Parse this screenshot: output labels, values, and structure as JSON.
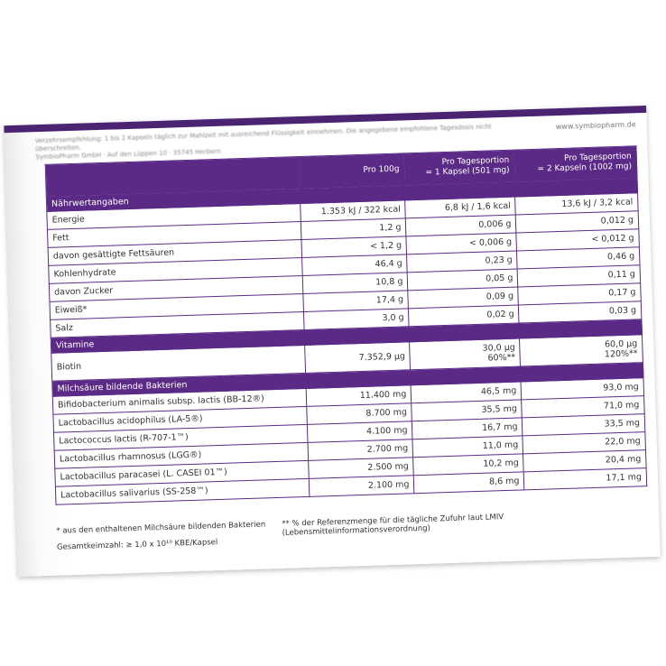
{
  "box": {
    "top_text": [
      "Verzehrsempfehlung: 1 bis 2 Kapseln täglich zur Mahlzeit mit ausreichend Flüssigkeit einnehmen. Die angegebene empfohlene Tagesdosis nicht überschreiten.",
      "SymbioPharm GmbH · Auf den Lüppen 10 · 35745 Herborn"
    ],
    "website": "www.symbiopharm.de",
    "table": {
      "header": [
        "Pro 100g",
        [
          "Pro Tagesportion",
          "= 1 Kapsel (501 mg)"
        ],
        [
          "Pro Tagesportion",
          "= 2 Kapseln (1002 mg)"
        ]
      ],
      "rows": [
        {
          "section": "Nährwertangaben"
        },
        {
          "label": "Energie",
          "values": [
            "1.353 kJ / 322 kcal",
            "6,8 kJ / 1,6 kcal",
            "13,6 kJ / 3,2 kcal"
          ]
        },
        {
          "label": "Fett",
          "values": [
            "1,2 g",
            "0,006 g",
            "0,012 g"
          ]
        },
        {
          "label": "davon gesättigte Fettsäuren",
          "values": [
            "< 1,2 g",
            "< 0,006 g",
            "< 0,012 g"
          ]
        },
        {
          "label": "Kohlenhydrate",
          "values": [
            "46,4 g",
            "0,23 g",
            "0,46 g"
          ]
        },
        {
          "label": "davon Zucker",
          "values": [
            "10,8 g",
            "0,05 g",
            "0,11 g"
          ]
        },
        {
          "label": "Eiweiß*",
          "values": [
            "17,4 g",
            "0,09 g",
            "0,17 g"
          ]
        },
        {
          "label": "Salz",
          "values": [
            "3,0 g",
            "0,02 g",
            "0,03 g"
          ]
        },
        {
          "section": "Vitamine"
        },
        {
          "label": "Biotin",
          "values": [
            "7.352,9 µg",
            [
              "30,0 µg",
              "60%**"
            ],
            [
              "60,0 µg",
              "120%**"
            ]
          ]
        },
        {
          "section": "Milchsäure bildende Bakterien"
        },
        {
          "label": "Bifidobacterium animalis subsp. lactis (BB-12®)",
          "values": [
            "11.400 mg",
            "46,5 mg",
            "93,0 mg"
          ]
        },
        {
          "label": "Lactobacillus acidophilus (LA-5®)",
          "values": [
            "8.700 mg",
            "35,5 mg",
            "71,0 mg"
          ]
        },
        {
          "label": "Lactococcus lactis (R-707-1™)",
          "values": [
            "4.100 mg",
            "16,7 mg",
            "33,5 mg"
          ]
        },
        {
          "label": "Lactobacillus rhamnosus (LGG®)",
          "values": [
            "2.700 mg",
            "11,0 mg",
            "22,0 mg"
          ]
        },
        {
          "label": "Lactobacillus paracasei (L. CASEI 01™)",
          "values": [
            "2.500 mg",
            "10,2 mg",
            "20,4 mg"
          ]
        },
        {
          "label": "Lactobacillus salivarius (SS-258™)",
          "values": [
            "2.100 mg",
            "8,6 mg",
            "17,1 mg"
          ]
        }
      ]
    },
    "footnotes": [
      "* aus den enthaltenen Milchsäure bildenden Bakterien",
      "** % der Referenzmenge für die tägliche Zufuhr laut LMIV (Lebensmittelinformationsverordnung)"
    ],
    "total_count": "Gesamtkeimzahl: ≥ 1,0 x 10¹⁰ KBE/Kapsel"
  }
}
